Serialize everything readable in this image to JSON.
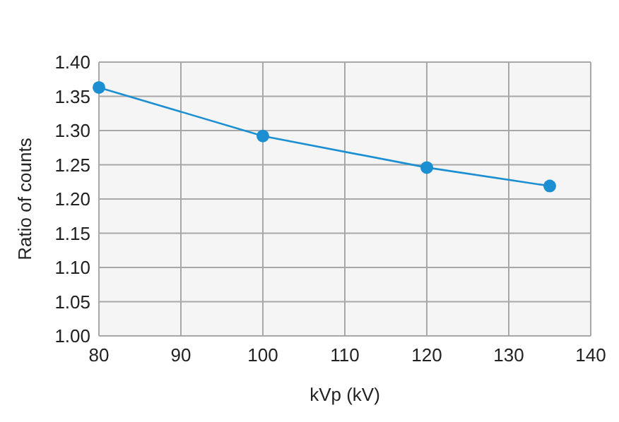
{
  "chart_data": {
    "type": "line",
    "xlabel": "kVp (kV)",
    "ylabel": "Ratio of counts",
    "x": [
      80,
      100,
      120,
      135
    ],
    "series": [
      {
        "color": "#1b8fd2",
        "values": [
          1.363,
          1.292,
          1.246,
          1.219
        ]
      }
    ],
    "xlim": [
      80,
      140
    ],
    "xticks": [
      80,
      90,
      100,
      110,
      120,
      130,
      140
    ],
    "ylim": [
      1.0,
      1.4
    ],
    "yticks": [
      {
        "value": 1.0,
        "label": "1.00"
      },
      {
        "value": 1.05,
        "label": "1.05"
      },
      {
        "value": 1.1,
        "label": "1.10"
      },
      {
        "value": 1.15,
        "label": "1.15"
      },
      {
        "value": 1.2,
        "label": "1.20"
      },
      {
        "value": 1.25,
        "label": "1.25"
      },
      {
        "value": 1.3,
        "label": "1.30"
      },
      {
        "value": 1.35,
        "label": "1.35"
      },
      {
        "value": 1.4,
        "label": "1.40"
      }
    ],
    "grid": true,
    "marker": "circle",
    "line_style": "solid"
  }
}
